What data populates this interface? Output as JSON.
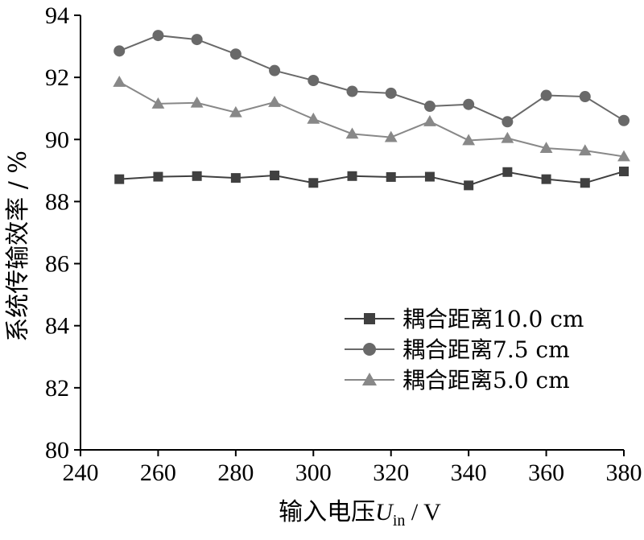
{
  "chart_data": {
    "type": "line",
    "xlabel": {
      "main": "输入电压",
      "symbol": "U",
      "subscript": "in",
      "unit": " / V"
    },
    "ylabel": "系统传输效率 / %",
    "xlim": [
      240,
      380
    ],
    "ylim": [
      80,
      94
    ],
    "xticks": [
      240,
      260,
      280,
      300,
      320,
      340,
      360,
      380
    ],
    "yticks": [
      80,
      82,
      84,
      86,
      88,
      90,
      92,
      94
    ],
    "grid": false,
    "legend_position": "lower-right",
    "x": [
      250,
      260,
      270,
      280,
      290,
      300,
      310,
      320,
      330,
      340,
      350,
      360,
      370,
      380
    ],
    "series": [
      {
        "name": "耦合距离10.0 cm",
        "marker": "square",
        "color": "#404040",
        "values": [
          88.72,
          88.8,
          88.82,
          88.76,
          88.84,
          88.6,
          88.82,
          88.79,
          88.8,
          88.52,
          88.95,
          88.72,
          88.6,
          88.97
        ]
      },
      {
        "name": "耦合距离7.5 cm",
        "marker": "circle",
        "color": "#696969",
        "values": [
          92.85,
          93.35,
          93.22,
          92.75,
          92.22,
          91.9,
          91.55,
          91.49,
          91.07,
          91.13,
          90.57,
          91.42,
          91.38,
          90.61
        ]
      },
      {
        "name": "耦合距离5.0 cm",
        "marker": "triangle",
        "color": "#888888",
        "values": [
          91.85,
          91.15,
          91.18,
          90.87,
          91.2,
          90.66,
          90.18,
          90.07,
          90.58,
          89.97,
          90.04,
          89.72,
          89.64,
          89.45
        ]
      }
    ]
  }
}
